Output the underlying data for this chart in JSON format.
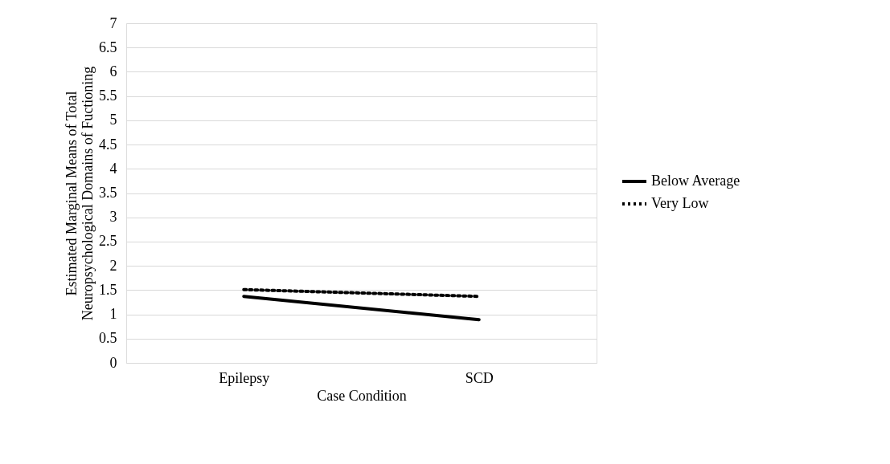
{
  "chart_data": {
    "type": "line",
    "xlabel": "Case Condition",
    "ylabel": "Estimated Marginal Means of Total Neuropsychological Domains of Fuctioning",
    "categories": [
      "Epilepsy",
      "SCD"
    ],
    "series": [
      {
        "name": "Below Average",
        "color": "#000000",
        "line_style": "solid",
        "values": [
          1.37,
          0.89
        ]
      },
      {
        "name": "Very Low",
        "color": "#000000",
        "line_style": "dotted",
        "values": [
          1.51,
          1.37
        ]
      }
    ],
    "ylim": [
      0,
      7
    ],
    "yticks": [
      0,
      0.5,
      1,
      1.5,
      2,
      2.5,
      3,
      3.5,
      4,
      4.5,
      5,
      5.5,
      6,
      6.5,
      7
    ],
    "grid": "y",
    "legend": "right"
  }
}
